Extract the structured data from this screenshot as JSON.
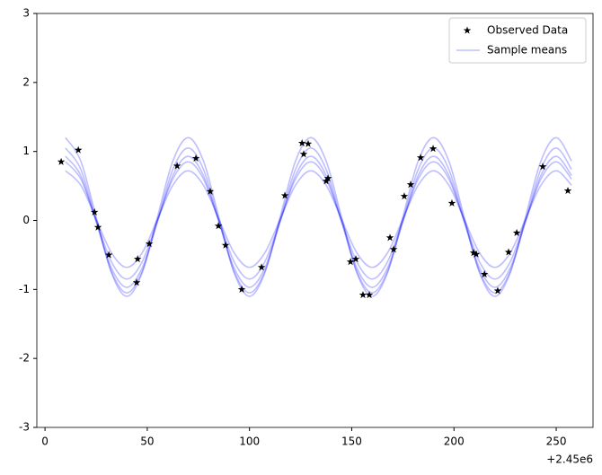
{
  "chart_data": {
    "type": "scatter-lines",
    "xlim": [
      -4,
      268
    ],
    "xticks": [
      0,
      50,
      100,
      150,
      200,
      250
    ],
    "ylim": [
      -3,
      3
    ],
    "yticks": [
      -3,
      -2,
      -1,
      0,
      1,
      2,
      3
    ],
    "x_offset_label": "+2.45e6",
    "legend": "upper right",
    "series": [
      {
        "name": "Observed Data",
        "type": "scatter",
        "color": "#000000",
        "x": [
          7.9,
          16.3,
          24.2,
          25.9,
          31.2,
          45.3,
          44.8,
          51,
          64.6,
          73.8,
          80.8,
          84.8,
          88.3,
          96.2,
          105.9,
          117.3,
          125.7,
          126.5,
          128.7,
          137.5,
          138.4,
          149.4,
          152,
          155.5,
          158.6,
          168.7,
          170.5,
          175.7,
          178.8,
          183.7,
          189.8,
          199,
          209.6,
          210.9,
          214.9,
          221.4,
          226.7,
          230.7,
          243.4,
          255.7
        ],
        "values": [
          0.85,
          1.02,
          0.12,
          -0.1,
          -0.5,
          -0.56,
          -0.9,
          -0.34,
          0.79,
          0.9,
          0.42,
          -0.08,
          -0.36,
          -1.0,
          -0.68,
          0.36,
          1.12,
          0.96,
          1.11,
          0.57,
          0.61,
          -0.6,
          -0.56,
          -1.08,
          -1.08,
          -0.25,
          -0.42,
          0.35,
          0.52,
          0.91,
          1.04,
          0.25,
          -0.47,
          -0.49,
          -0.78,
          -1.02,
          -0.46,
          -0.18,
          0.78,
          0.43
        ]
      },
      {
        "name": "Sample means",
        "type": "line",
        "color": "#0000ff",
        "x": [
          10,
          17.5,
          25,
          32.5,
          40,
          47.5,
          55,
          62.5,
          70,
          77.5,
          85,
          92.5,
          100,
          107.5,
          115,
          122.5,
          130,
          137.5,
          145,
          152.5,
          160,
          167.5,
          175,
          182.5,
          190,
          197.5,
          205,
          212.5,
          220,
          227.5,
          235,
          242.5,
          250,
          257.5
        ],
        "values": [
          [
            1.2,
            0.86,
            0.05,
            -0.76,
            -1.1,
            -0.76,
            0.05,
            0.86,
            1.2,
            0.86,
            0.05,
            -0.76,
            -1.1,
            -0.76,
            0.05,
            0.86,
            1.2,
            0.86,
            0.05,
            -0.76,
            -1.1,
            -0.76,
            0.05,
            0.86,
            1.2,
            0.86,
            0.05,
            -0.76,
            -1.1,
            -0.76,
            0.05,
            0.86,
            1.2,
            0.86
          ],
          [
            1.05,
            0.74,
            0,
            -0.74,
            -1.05,
            -0.74,
            0,
            0.74,
            1.05,
            0.74,
            0,
            -0.74,
            -1.05,
            -0.74,
            0,
            0.74,
            1.05,
            0.74,
            0,
            -0.74,
            -1.05,
            -0.74,
            0,
            0.74,
            1.05,
            0.74,
            0,
            -0.74,
            -1.05,
            -0.74,
            0,
            0.74,
            1.05,
            0.74
          ],
          [
            0.93,
            0.65,
            -0.02,
            -0.69,
            -0.97,
            -0.69,
            -0.02,
            0.65,
            0.93,
            0.65,
            -0.02,
            -0.69,
            -0.97,
            -0.69,
            -0.02,
            0.65,
            0.93,
            0.65,
            -0.02,
            -0.69,
            -0.97,
            -0.69,
            -0.02,
            0.65,
            0.93,
            0.65,
            -0.02,
            -0.69,
            -0.97,
            -0.69,
            -0.02,
            0.65,
            0.93,
            0.65
          ],
          [
            0.85,
            0.6,
            0,
            -0.6,
            -0.85,
            -0.6,
            0,
            0.6,
            0.85,
            0.6,
            0,
            -0.6,
            -0.85,
            -0.6,
            0,
            0.6,
            0.85,
            0.6,
            0,
            -0.6,
            -0.85,
            -0.6,
            0,
            0.6,
            0.85,
            0.6,
            0,
            -0.6,
            -0.85,
            -0.6,
            0,
            0.6,
            0.85,
            0.6
          ],
          [
            0.72,
            0.51,
            0.02,
            -0.47,
            -0.68,
            -0.47,
            0.02,
            0.51,
            0.72,
            0.51,
            0.02,
            -0.47,
            -0.68,
            -0.47,
            0.02,
            0.51,
            0.72,
            0.51,
            0.02,
            -0.47,
            -0.68,
            -0.47,
            0.02,
            0.51,
            0.72,
            0.51,
            0.02,
            -0.47,
            -0.68,
            -0.47,
            0.02,
            0.51,
            0.72,
            0.51
          ]
        ]
      }
    ]
  }
}
